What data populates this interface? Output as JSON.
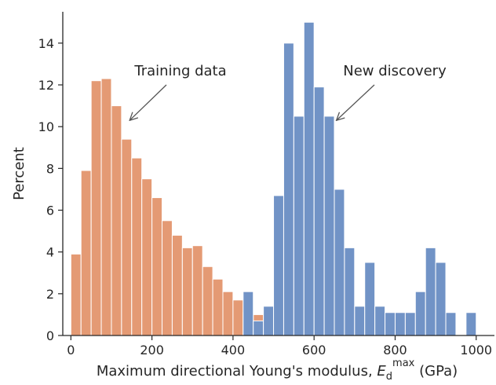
{
  "chart_data": {
    "type": "bar",
    "title": "",
    "xlabel": {
      "main": "Maximum directional Young's modulus, ",
      "symbol": "E",
      "subscript": "d",
      "superscript": "max",
      "unit": " (GPa)"
    },
    "ylabel": "Percent",
    "xlim": [
      -20,
      1045
    ],
    "ylim": [
      0,
      15.5
    ],
    "x_ticks": [
      0,
      200,
      400,
      600,
      800,
      1000
    ],
    "y_ticks": [
      0,
      2,
      4,
      6,
      8,
      10,
      12,
      14
    ],
    "bin_width": 25,
    "series": [
      {
        "name": "Training data",
        "color": "#E49A74",
        "bins": [
          {
            "x0": 0,
            "value": 3.9
          },
          {
            "x0": 25,
            "value": 7.9
          },
          {
            "x0": 50,
            "value": 12.2
          },
          {
            "x0": 75,
            "value": 12.3
          },
          {
            "x0": 100,
            "value": 11.0
          },
          {
            "x0": 125,
            "value": 9.4
          },
          {
            "x0": 150,
            "value": 8.5
          },
          {
            "x0": 175,
            "value": 7.5
          },
          {
            "x0": 200,
            "value": 6.6
          },
          {
            "x0": 225,
            "value": 5.5
          },
          {
            "x0": 250,
            "value": 4.8
          },
          {
            "x0": 275,
            "value": 4.2
          },
          {
            "x0": 300,
            "value": 4.3
          },
          {
            "x0": 325,
            "value": 3.3
          },
          {
            "x0": 350,
            "value": 2.7
          },
          {
            "x0": 375,
            "value": 2.1
          },
          {
            "x0": 400,
            "value": 1.7
          },
          {
            "x0": 425,
            "value": 1.1
          },
          {
            "x0": 450,
            "value": 1.0
          },
          {
            "x0": 475,
            "value": 0.6
          },
          {
            "x0": 500,
            "value": 0.5
          },
          {
            "x0": 525,
            "value": 0.5
          },
          {
            "x0": 550,
            "value": 0.5
          },
          {
            "x0": 575,
            "value": 0.4
          },
          {
            "x0": 600,
            "value": 0.3
          },
          {
            "x0": 625,
            "value": 0.2
          },
          {
            "x0": 650,
            "value": 0.1
          },
          {
            "x0": 675,
            "value": 0.1
          },
          {
            "x0": 700,
            "value": 0.05
          },
          {
            "x0": 725,
            "value": 0.05
          }
        ]
      },
      {
        "name": "New discovery",
        "color": "#7193C6",
        "bins": [
          {
            "x0": 425,
            "value": 2.1
          },
          {
            "x0": 450,
            "value": 0.7
          },
          {
            "x0": 475,
            "value": 1.4
          },
          {
            "x0": 500,
            "value": 6.7
          },
          {
            "x0": 525,
            "value": 14.0
          },
          {
            "x0": 550,
            "value": 10.5
          },
          {
            "x0": 575,
            "value": 15.0
          },
          {
            "x0": 600,
            "value": 11.9
          },
          {
            "x0": 625,
            "value": 10.5
          },
          {
            "x0": 650,
            "value": 7.0
          },
          {
            "x0": 675,
            "value": 4.2
          },
          {
            "x0": 700,
            "value": 1.4
          },
          {
            "x0": 725,
            "value": 3.5
          },
          {
            "x0": 750,
            "value": 1.4
          },
          {
            "x0": 775,
            "value": 1.1
          },
          {
            "x0": 800,
            "value": 1.1
          },
          {
            "x0": 825,
            "value": 1.1
          },
          {
            "x0": 850,
            "value": 2.1
          },
          {
            "x0": 875,
            "value": 4.2
          },
          {
            "x0": 900,
            "value": 3.5
          },
          {
            "x0": 925,
            "value": 1.1
          },
          {
            "x0": 975,
            "value": 1.1
          }
        ]
      }
    ],
    "annotations": [
      {
        "text": "Training data",
        "series": "Training data",
        "arrow_to": {
          "x": 145,
          "y": 10.3
        }
      },
      {
        "text": "New discovery",
        "series": "New discovery",
        "arrow_to": {
          "x": 655,
          "y": 10.3
        }
      }
    ],
    "grid": false,
    "legend": "none"
  }
}
